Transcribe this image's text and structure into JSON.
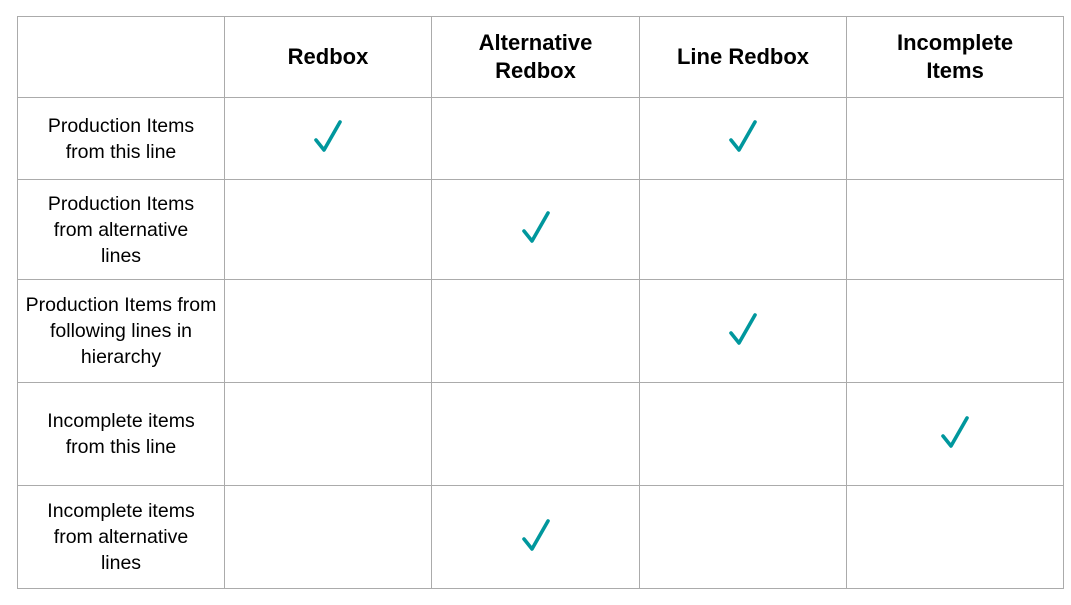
{
  "table": {
    "headers": [
      "",
      "Redbox",
      "Alternative Redbox",
      "Line Redbox",
      "Incomplete Items"
    ],
    "rows": [
      {
        "label": "Production Items from this line",
        "checks": [
          true,
          false,
          true,
          false
        ]
      },
      {
        "label": "Production Items from alternative lines",
        "checks": [
          false,
          true,
          false,
          false
        ]
      },
      {
        "label": "Production Items from following lines in hierarchy",
        "checks": [
          false,
          false,
          true,
          false
        ]
      },
      {
        "label": "Incomplete items from this line",
        "checks": [
          false,
          false,
          false,
          true
        ]
      },
      {
        "label": "Incomplete items from alternative lines",
        "checks": [
          false,
          true,
          false,
          false
        ]
      }
    ]
  },
  "colors": {
    "check": "#00979d",
    "border": "#ababab"
  },
  "icons": {
    "check": "checkmark-icon"
  }
}
